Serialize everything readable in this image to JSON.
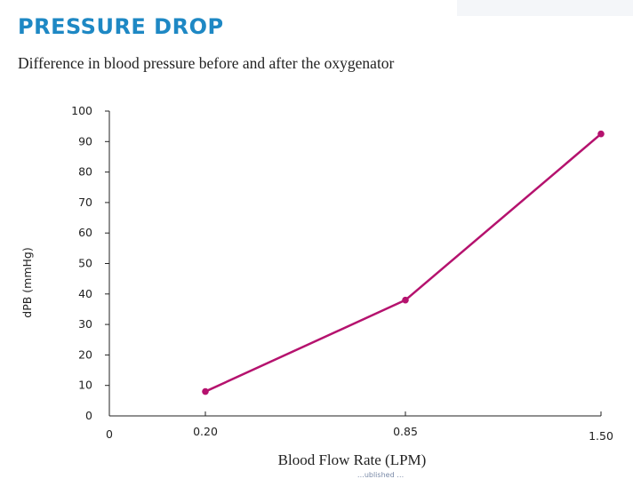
{
  "header": {
    "title": "PRESSURE DROP",
    "subtitle": "Difference in blood pressure before and after the oxygenator"
  },
  "footer": {
    "partial_text": "…ublished …"
  },
  "colors": {
    "title": "#1e88c4",
    "series": "#b5126e",
    "axis": "#222222",
    "corner_panel": "#f4f6f9"
  },
  "chart_data": {
    "type": "line",
    "title": "PRESSURE DROP",
    "subtitle": "Difference in blood pressure before and after the oxygenator",
    "xlabel": "Blood Flow Rate (LPM)",
    "ylabel": "dPB (mmHg)",
    "x_ticks": [
      "0",
      "0.20",
      "0.85",
      "1.50"
    ],
    "y_ticks": [
      "0",
      "10",
      "20",
      "30",
      "40",
      "50",
      "60",
      "70",
      "80",
      "90",
      "100"
    ],
    "ylim": [
      0,
      100
    ],
    "grid": false,
    "legend": "none",
    "series": [
      {
        "x": [
          0.2,
          0.85,
          1.5
        ],
        "y": [
          8,
          38,
          92.5
        ]
      }
    ]
  }
}
